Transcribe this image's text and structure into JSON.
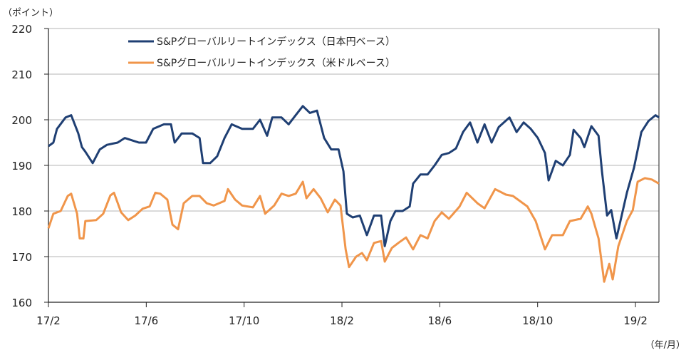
{
  "chart_data": {
    "type": "line",
    "title": "",
    "ylabel": "（ポイント）",
    "xlabel": "（年/月）",
    "x_unit": "months since 2017/2",
    "xlim": [
      0,
      24.96
    ],
    "ylim": [
      160,
      220
    ],
    "yticks": [
      160,
      170,
      180,
      190,
      200,
      210,
      220
    ],
    "xticks": [
      {
        "t": 0,
        "label": "17/2"
      },
      {
        "t": 4,
        "label": "17/6"
      },
      {
        "t": 8,
        "label": "17/10"
      },
      {
        "t": 12,
        "label": "18/2"
      },
      {
        "t": 16,
        "label": "18/6"
      },
      {
        "t": 20,
        "label": "18/10"
      },
      {
        "t": 24,
        "label": "19/2"
      }
    ],
    "grid": true,
    "legend_position": "top-center",
    "series": [
      {
        "name": "S&Pグローバルリートインデックス（日本円ベース）",
        "color": "#1f3f73",
        "points": [
          [
            0,
            194.2
          ],
          [
            0.2,
            195
          ],
          [
            0.35,
            198
          ],
          [
            0.7,
            200.5
          ],
          [
            0.93,
            201
          ],
          [
            1.22,
            197
          ],
          [
            1.37,
            194
          ],
          [
            1.51,
            193
          ],
          [
            1.81,
            190.5
          ],
          [
            2.1,
            193.5
          ],
          [
            2.39,
            194.5
          ],
          [
            2.83,
            195
          ],
          [
            3.12,
            196
          ],
          [
            3.41,
            195.5
          ],
          [
            3.7,
            195
          ],
          [
            3.99,
            195
          ],
          [
            4.28,
            198
          ],
          [
            4.72,
            199
          ],
          [
            5.01,
            199
          ],
          [
            5.16,
            195
          ],
          [
            5.45,
            197
          ],
          [
            5.88,
            197
          ],
          [
            6.18,
            196
          ],
          [
            6.32,
            190.5
          ],
          [
            6.61,
            190.5
          ],
          [
            6.9,
            192
          ],
          [
            7.2,
            196
          ],
          [
            7.49,
            199
          ],
          [
            7.92,
            198
          ],
          [
            8.36,
            198
          ],
          [
            8.65,
            200
          ],
          [
            8.94,
            196.5
          ],
          [
            9.15,
            200.5
          ],
          [
            9.53,
            200.5
          ],
          [
            9.82,
            199
          ],
          [
            10.11,
            201
          ],
          [
            10.4,
            203
          ],
          [
            10.69,
            201.5
          ],
          [
            10.98,
            202
          ],
          [
            11.27,
            196
          ],
          [
            11.56,
            193.5
          ],
          [
            11.86,
            193.5
          ],
          [
            12.06,
            188.7
          ],
          [
            12.2,
            179.4
          ],
          [
            12.44,
            178.6
          ],
          [
            12.73,
            179
          ],
          [
            13.02,
            174.7
          ],
          [
            13.31,
            179
          ],
          [
            13.6,
            179
          ],
          [
            13.75,
            172.3
          ],
          [
            13.98,
            177.8
          ],
          [
            14.19,
            180
          ],
          [
            14.48,
            180
          ],
          [
            14.77,
            181
          ],
          [
            14.91,
            186
          ],
          [
            15.21,
            188
          ],
          [
            15.5,
            188
          ],
          [
            15.79,
            190
          ],
          [
            16.08,
            192.3
          ],
          [
            16.37,
            192.7
          ],
          [
            16.66,
            193.7
          ],
          [
            16.95,
            197.3
          ],
          [
            17.24,
            199.4
          ],
          [
            17.54,
            195
          ],
          [
            17.83,
            199
          ],
          [
            18.12,
            195
          ],
          [
            18.41,
            198.4
          ],
          [
            18.85,
            200.5
          ],
          [
            19.14,
            197.3
          ],
          [
            19.43,
            199.4
          ],
          [
            19.72,
            198
          ],
          [
            20.01,
            196
          ],
          [
            20.3,
            192.7
          ],
          [
            20.45,
            186.7
          ],
          [
            20.74,
            191
          ],
          [
            21.03,
            190
          ],
          [
            21.32,
            192.3
          ],
          [
            21.47,
            197.8
          ],
          [
            21.76,
            196
          ],
          [
            21.91,
            194
          ],
          [
            22.2,
            198.6
          ],
          [
            22.49,
            196.5
          ],
          [
            22.63,
            188.7
          ],
          [
            22.84,
            179
          ],
          [
            23.01,
            180.2
          ],
          [
            23.22,
            174
          ],
          [
            23.42,
            178.6
          ],
          [
            23.65,
            184
          ],
          [
            23.94,
            189.5
          ],
          [
            24.24,
            197.3
          ],
          [
            24.53,
            199.7
          ],
          [
            24.82,
            201
          ],
          [
            24.96,
            200.5
          ]
        ]
      },
      {
        "name": "S&Pグローバルリートインデックス（米ドルベース）",
        "color": "#f0954a",
        "points": [
          [
            0,
            176.2
          ],
          [
            0.2,
            179.4
          ],
          [
            0.5,
            180
          ],
          [
            0.79,
            183.3
          ],
          [
            0.93,
            183.8
          ],
          [
            1.17,
            179.4
          ],
          [
            1.28,
            174
          ],
          [
            1.43,
            174
          ],
          [
            1.51,
            177.8
          ],
          [
            1.95,
            178
          ],
          [
            2.24,
            179.4
          ],
          [
            2.53,
            183.4
          ],
          [
            2.68,
            184
          ],
          [
            2.97,
            179.7
          ],
          [
            3.26,
            178
          ],
          [
            3.55,
            179
          ],
          [
            3.85,
            180.5
          ],
          [
            4.14,
            181
          ],
          [
            4.37,
            184
          ],
          [
            4.57,
            183.8
          ],
          [
            4.86,
            182.5
          ],
          [
            5.07,
            177
          ],
          [
            5.3,
            176
          ],
          [
            5.53,
            181.7
          ],
          [
            5.88,
            183.3
          ],
          [
            6.18,
            183.3
          ],
          [
            6.47,
            181.7
          ],
          [
            6.76,
            181.2
          ],
          [
            7.2,
            182.2
          ],
          [
            7.34,
            184.8
          ],
          [
            7.63,
            182.5
          ],
          [
            7.92,
            181.2
          ],
          [
            8.36,
            180.8
          ],
          [
            8.65,
            183.3
          ],
          [
            8.86,
            179.4
          ],
          [
            9.23,
            181.2
          ],
          [
            9.53,
            183.8
          ],
          [
            9.82,
            183.3
          ],
          [
            10.11,
            183.8
          ],
          [
            10.4,
            186.4
          ],
          [
            10.55,
            182.8
          ],
          [
            10.84,
            184.8
          ],
          [
            11.13,
            182.8
          ],
          [
            11.42,
            179.7
          ],
          [
            11.71,
            182.5
          ],
          [
            11.94,
            181.2
          ],
          [
            12.15,
            171.6
          ],
          [
            12.29,
            167.7
          ],
          [
            12.58,
            170
          ],
          [
            12.82,
            170.8
          ],
          [
            13.02,
            169.2
          ],
          [
            13.31,
            173
          ],
          [
            13.6,
            173.4
          ],
          [
            13.75,
            168.9
          ],
          [
            14.04,
            171.9
          ],
          [
            14.33,
            173.1
          ],
          [
            14.62,
            174.2
          ],
          [
            14.91,
            171.6
          ],
          [
            15.21,
            174.7
          ],
          [
            15.5,
            174
          ],
          [
            15.79,
            177.8
          ],
          [
            16.08,
            179.7
          ],
          [
            16.37,
            178.3
          ],
          [
            16.81,
            181
          ],
          [
            17.1,
            184
          ],
          [
            17.54,
            181.7
          ],
          [
            17.83,
            180.6
          ],
          [
            18.26,
            184.8
          ],
          [
            18.7,
            183.6
          ],
          [
            18.99,
            183.3
          ],
          [
            19.58,
            181
          ],
          [
            19.92,
            177.8
          ],
          [
            20.3,
            171.6
          ],
          [
            20.59,
            174.7
          ],
          [
            21.03,
            174.7
          ],
          [
            21.32,
            177.8
          ],
          [
            21.76,
            178.3
          ],
          [
            22.05,
            181
          ],
          [
            22.2,
            179.4
          ],
          [
            22.49,
            174
          ],
          [
            22.72,
            164.5
          ],
          [
            22.93,
            168.4
          ],
          [
            23.07,
            165
          ],
          [
            23.3,
            172.3
          ],
          [
            23.65,
            177.8
          ],
          [
            23.89,
            180.2
          ],
          [
            24.09,
            186.4
          ],
          [
            24.38,
            187.2
          ],
          [
            24.67,
            186.9
          ],
          [
            24.96,
            186
          ]
        ]
      }
    ]
  }
}
